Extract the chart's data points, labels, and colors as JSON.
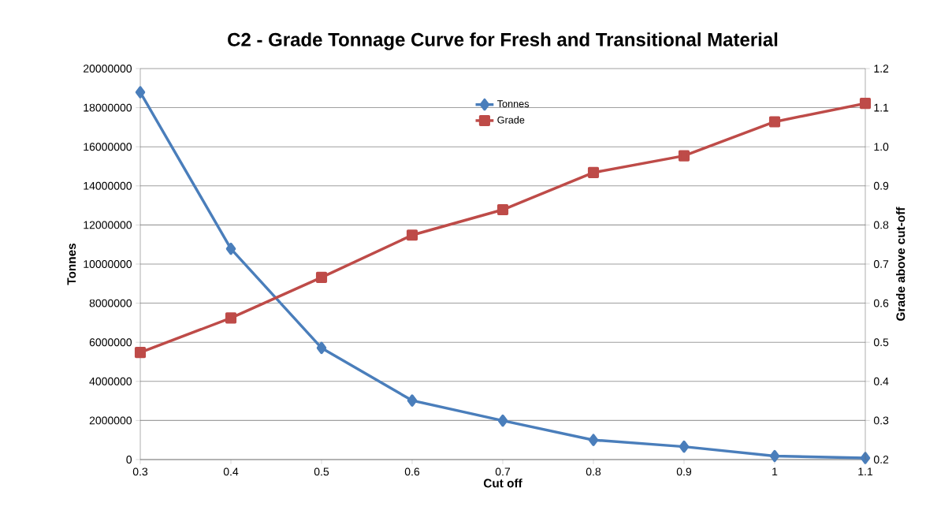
{
  "chart_data": {
    "type": "line",
    "title": "C2 - Grade Tonnage Curve for Fresh and Transitional Material",
    "xlabel": "Cut off",
    "ylabel": "Tonnes",
    "y2label": "Grade above cut-off",
    "x": [
      0.3,
      0.4,
      0.5,
      0.6,
      0.7,
      0.8,
      0.9,
      1,
      1.1
    ],
    "series": [
      {
        "name": "Tonnes",
        "color": "#4a7ebb",
        "marker": "diamond",
        "values": [
          18790000,
          10780000,
          5710000,
          3020000,
          1990000,
          1000000,
          660000,
          180000,
          80000
        ]
      },
      {
        "name": "Grade",
        "color": "#be4b48",
        "marker": "square",
        "axis": "y2",
        "values": [
          0.474,
          0.562,
          0.666,
          0.774,
          0.839,
          0.934,
          0.977,
          1.064,
          1.111
        ]
      }
    ],
    "xlim": [
      0.3,
      1.1
    ],
    "xticks": [
      0.3,
      0.4,
      0.5,
      0.6,
      0.7,
      0.8,
      0.9,
      1,
      1.1
    ],
    "ylim": [
      0,
      20000000
    ],
    "yticks": [
      0,
      2000000,
      4000000,
      6000000,
      8000000,
      10000000,
      12000000,
      14000000,
      16000000,
      18000000,
      20000000
    ],
    "y2lim": [
      0.2,
      1.2
    ],
    "y2ticks": [
      0.2,
      0.3,
      0.4,
      0.5,
      0.6,
      0.7,
      0.8,
      0.9,
      {
        "value": 1,
        "label": "1.0"
      },
      1.1,
      1.2
    ],
    "grid": "y",
    "legend": "top",
    "line_style": "solid"
  }
}
